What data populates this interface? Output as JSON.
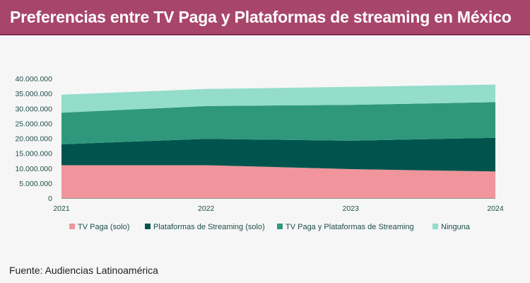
{
  "header": {
    "title": "Preferencias entre TV Paga y Plataformas de streaming en México"
  },
  "footer": {
    "source": "Fuente: Audiencias Latinoamérica"
  },
  "colors": {
    "header_bg": "#a8466a",
    "background": "#f6f6f6",
    "axis_text": "#1e4d48"
  },
  "chart_data": {
    "type": "area",
    "stacked": true,
    "title": "",
    "xlabel": "",
    "ylabel": "",
    "x": [
      "2021",
      "2022",
      "2023",
      "2024"
    ],
    "ylim": [
      0,
      40000000
    ],
    "yticks": [
      0,
      5000000,
      10000000,
      15000000,
      20000000,
      25000000,
      30000000,
      35000000,
      40000000
    ],
    "ytick_labels": [
      "0",
      "5.000.000",
      "10.000.000",
      "15.000.000",
      "20.000.000",
      "25.000.000",
      "30.000.000",
      "35.000.000",
      "40.000.000"
    ],
    "grid": false,
    "legend_position": "bottom",
    "series": [
      {
        "name": "TV Paga (solo)",
        "color": "#ef959b",
        "values": [
          11000000,
          11000000,
          9700000,
          8900000
        ]
      },
      {
        "name": "Plataformas de Streaming (solo)",
        "color": "#00544d",
        "values": [
          7000000,
          8800000,
          9500000,
          11300000
        ]
      },
      {
        "name": "TV Paga y Plataformas de Streaming",
        "color": "#2f987c",
        "values": [
          10600000,
          11000000,
          12000000,
          11900000
        ]
      },
      {
        "name": "Ninguna",
        "color": "#93ddca",
        "values": [
          6000000,
          5700000,
          6000000,
          5900000
        ]
      }
    ]
  }
}
